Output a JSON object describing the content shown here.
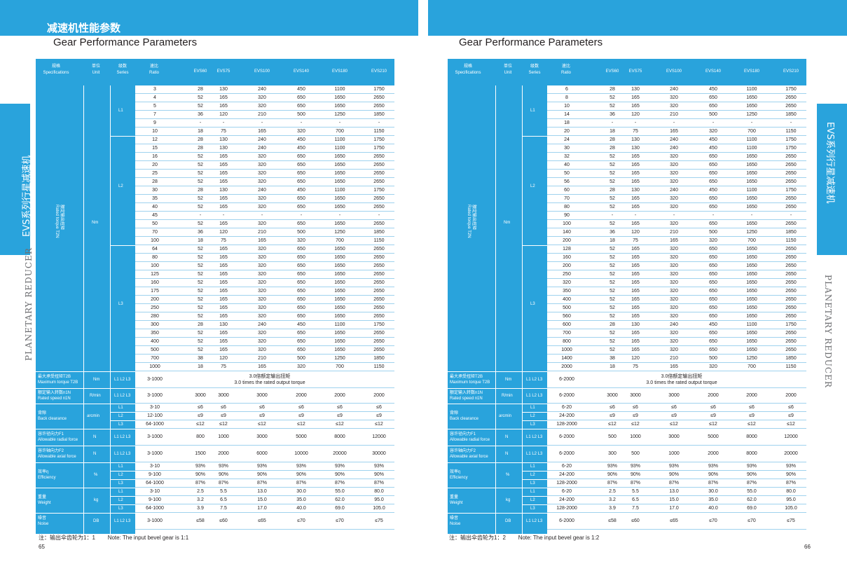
{
  "section_title_cn": "减速机性能参数",
  "heading": "Gear Performance Parameters",
  "side_cn": "EVS系列行星减速机",
  "side_en": "PLANETARY REDUCER",
  "headers": {
    "spec": [
      "规格",
      "Specifications"
    ],
    "unit": [
      "单位",
      "Unit"
    ],
    "series": [
      "级数",
      "Series"
    ],
    "ratio": [
      "速比",
      "Ratio"
    ],
    "models": [
      "EVS60",
      "EVS75",
      "EVS100",
      "EVS140",
      "EVS180",
      "EVS210"
    ]
  },
  "labels": {
    "rated_torque": [
      "额定输出扭矩",
      "Rated torque T2N"
    ],
    "nm": "Nm",
    "L1": "L1",
    "L2": "L2",
    "L3": "L3",
    "L123": "L1 L2 L3",
    "max_torque": [
      "最大承受扭矩T2B",
      "Maximum torque T2B"
    ],
    "max_torque_val": [
      "3.0倍额定输出扭矩",
      "3.0 times the rated output torque"
    ],
    "rated_speed": [
      "额定输入转数n1N",
      "Rated speed n1N"
    ],
    "rmin": "R/min",
    "backlash": [
      "背隙",
      "Back clearance"
    ],
    "arcmin": "arcmin",
    "radial": [
      "容许径向力F1",
      "Allowable radial force"
    ],
    "axial": [
      "容许轴向力F2",
      "Allowable axial force"
    ],
    "N": "N",
    "eff": [
      "效率η",
      "Efficiency"
    ],
    "pct": "%",
    "weight": [
      "重量",
      "Weight"
    ],
    "kg": "kg",
    "noise": [
      "噪音",
      "Noise"
    ],
    "db": "DB"
  },
  "left": {
    "ratios": [
      "3",
      "4",
      "5",
      "7",
      "9",
      "10",
      "12",
      "15",
      "16",
      "20",
      "25",
      "28",
      "30",
      "35",
      "40",
      "45",
      "50",
      "70",
      "100",
      "64",
      "80",
      "100",
      "125",
      "160",
      "175",
      "200",
      "250",
      "280",
      "300",
      "350",
      "400",
      "500",
      "700",
      "1000"
    ],
    "ranges": [
      "3-1000",
      "3-1000",
      "3-1000",
      "3-1000",
      "3-1000",
      "3-1000"
    ],
    "bl_r": [
      "3-10",
      "12-100",
      "64-1000"
    ],
    "eff_r": [
      "3-10",
      "9-100",
      "64-1000"
    ],
    "wt_r": [
      "3-10",
      "9-100",
      "64-1000"
    ],
    "note_cn": "注：输出伞齿轮为1：1",
    "note_en": "Note: The input bevel gear is 1:1",
    "page": "65"
  },
  "right": {
    "ratios": [
      "6",
      "8",
      "10",
      "14",
      "18",
      "20",
      "24",
      "30",
      "32",
      "40",
      "50",
      "56",
      "60",
      "70",
      "80",
      "90",
      "100",
      "140",
      "200",
      "128",
      "160",
      "200",
      "250",
      "320",
      "350",
      "400",
      "500",
      "560",
      "600",
      "700",
      "800",
      "1000",
      "1400",
      "2000"
    ],
    "ranges": [
      "6-2000",
      "6-2000",
      "6-2000",
      "6-2000",
      "6-2000",
      "6-2000"
    ],
    "bl_r": [
      "6-20",
      "24-200",
      "128-2000"
    ],
    "eff_r": [
      "6-20",
      "24-200",
      "128-2000"
    ],
    "wt_r": [
      "6-20",
      "24-200",
      "128-2000"
    ],
    "note_cn": "注：输出伞齿轮为1：2",
    "note_en": "Note: The input bevel gear is 1:2",
    "page": "66"
  },
  "torque_rows": [
    [
      "28",
      "130",
      "240",
      "450",
      "1100",
      "1750"
    ],
    [
      "52",
      "165",
      "320",
      "650",
      "1650",
      "2650"
    ],
    [
      "52",
      "165",
      "320",
      "650",
      "1650",
      "2650"
    ],
    [
      "36",
      "120",
      "210",
      "500",
      "1250",
      "1850"
    ],
    [
      "-",
      "-",
      "-",
      "-",
      "-",
      "-"
    ],
    [
      "18",
      "75",
      "165",
      "320",
      "700",
      "1150"
    ],
    [
      "28",
      "130",
      "240",
      "450",
      "1100",
      "1750"
    ],
    [
      "28",
      "130",
      "240",
      "450",
      "1100",
      "1750"
    ],
    [
      "52",
      "165",
      "320",
      "650",
      "1650",
      "2650"
    ],
    [
      "52",
      "165",
      "320",
      "650",
      "1650",
      "2650"
    ],
    [
      "52",
      "165",
      "320",
      "650",
      "1650",
      "2650"
    ],
    [
      "52",
      "165",
      "320",
      "650",
      "1650",
      "2650"
    ],
    [
      "28",
      "130",
      "240",
      "450",
      "1100",
      "1750"
    ],
    [
      "52",
      "165",
      "320",
      "650",
      "1650",
      "2650"
    ],
    [
      "52",
      "165",
      "320",
      "650",
      "1650",
      "2650"
    ],
    [
      "-",
      "-",
      "-",
      "-",
      "-",
      "-"
    ],
    [
      "52",
      "165",
      "320",
      "650",
      "1650",
      "2650"
    ],
    [
      "36",
      "120",
      "210",
      "500",
      "1250",
      "1850"
    ],
    [
      "18",
      "75",
      "165",
      "320",
      "700",
      "1150"
    ],
    [
      "52",
      "165",
      "320",
      "650",
      "1650",
      "2650"
    ],
    [
      "52",
      "165",
      "320",
      "650",
      "1650",
      "2650"
    ],
    [
      "52",
      "165",
      "320",
      "650",
      "1650",
      "2650"
    ],
    [
      "52",
      "165",
      "320",
      "650",
      "1650",
      "2650"
    ],
    [
      "52",
      "165",
      "320",
      "650",
      "1650",
      "2650"
    ],
    [
      "52",
      "165",
      "320",
      "650",
      "1650",
      "2650"
    ],
    [
      "52",
      "165",
      "320",
      "650",
      "1650",
      "2650"
    ],
    [
      "52",
      "165",
      "320",
      "650",
      "1650",
      "2650"
    ],
    [
      "52",
      "165",
      "320",
      "650",
      "1650",
      "2650"
    ],
    [
      "28",
      "130",
      "240",
      "450",
      "1100",
      "1750"
    ],
    [
      "52",
      "165",
      "320",
      "650",
      "1650",
      "2650"
    ],
    [
      "52",
      "165",
      "320",
      "650",
      "1650",
      "2650"
    ],
    [
      "52",
      "165",
      "320",
      "650",
      "1650",
      "2650"
    ],
    [
      "38",
      "120",
      "210",
      "500",
      "1250",
      "1850"
    ],
    [
      "18",
      "75",
      "165",
      "320",
      "700",
      "1150"
    ]
  ],
  "speed": [
    "3000",
    "3000",
    "3000",
    "2000",
    "2000",
    "2000"
  ],
  "backlash": [
    [
      "≤6",
      "≤6",
      "≤6",
      "≤6",
      "≤6",
      "≤6"
    ],
    [
      "≤9",
      "≤9",
      "≤9",
      "≤9",
      "≤9",
      "≤9"
    ],
    [
      "≤12",
      "≤12",
      "≤12",
      "≤12",
      "≤12",
      "≤12"
    ]
  ],
  "radial_left": [
    "800",
    "1000",
    "3000",
    "5000",
    "8000",
    "12000"
  ],
  "radial_right": [
    "500",
    "1000",
    "3000",
    "5000",
    "8000",
    "12000"
  ],
  "axial_left": [
    "1500",
    "2000",
    "6000",
    "10000",
    "20000",
    "30000"
  ],
  "axial_right": [
    "300",
    "500",
    "1000",
    "2000",
    "8000",
    "20000"
  ],
  "eff": [
    [
      "93%",
      "93%",
      "93%",
      "93%",
      "93%",
      "93%"
    ],
    [
      "90%",
      "90%",
      "90%",
      "90%",
      "90%",
      "90%"
    ],
    [
      "87%",
      "87%",
      "87%",
      "87%",
      "87%",
      "87%"
    ]
  ],
  "weight": [
    [
      "2.5",
      "5.5",
      "13.0",
      "30.0",
      "55.0",
      "80.0"
    ],
    [
      "3.2",
      "6.5",
      "15.0",
      "35.0",
      "62.0",
      "95.0"
    ],
    [
      "3.9",
      "7.5",
      "17.0",
      "40.0",
      "69.0",
      "105.0"
    ]
  ],
  "noise": [
    "≤58",
    "≤60",
    "≤65",
    "≤70",
    "≤70",
    "≤75"
  ]
}
